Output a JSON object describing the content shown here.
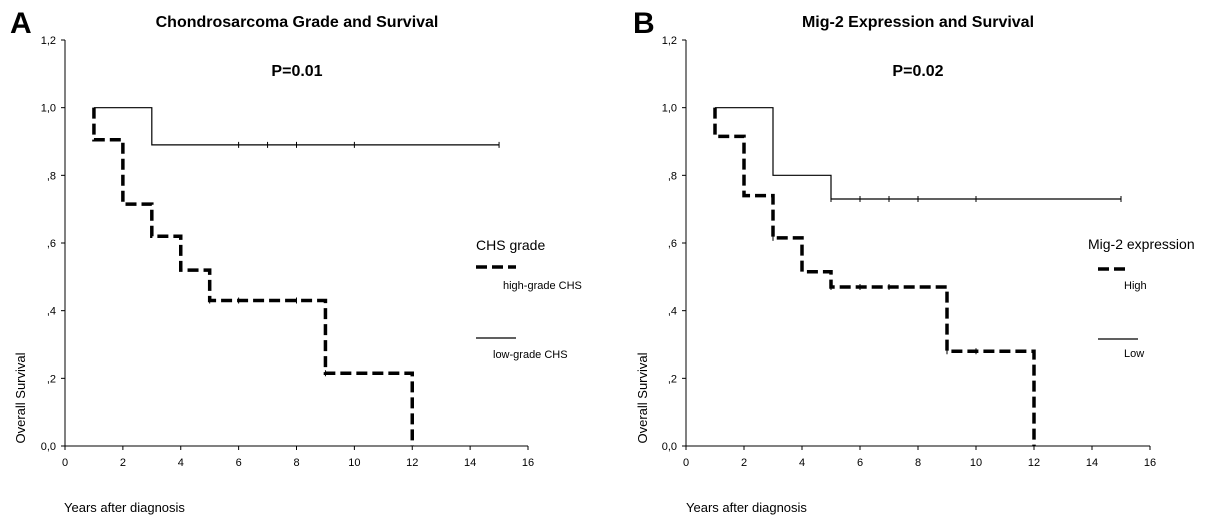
{
  "colors": {
    "ink": "#000000",
    "background": "#ffffff"
  },
  "chart_data": [
    {
      "type": "line",
      "step": true,
      "panel_label": "A",
      "title": "Chondrosarcoma Grade and Survival",
      "annotation": "P=0.01",
      "xlabel": "Years after diagnosis",
      "ylabel": "Overall Survival",
      "xlim": [
        0,
        16
      ],
      "ylim": [
        0,
        1.2
      ],
      "x_ticks": [
        0,
        2,
        4,
        6,
        8,
        10,
        12,
        14,
        16
      ],
      "x_tick_labels": [
        "0",
        "2",
        "4",
        "6",
        "8",
        "10",
        "12",
        "14",
        "16"
      ],
      "y_ticks": [
        0,
        0.2,
        0.4,
        0.6,
        0.8,
        1.0,
        1.2
      ],
      "y_tick_labels": [
        "0,0",
        ",2",
        ",4",
        ",6",
        ",8",
        "1,0",
        "1,2"
      ],
      "legend_title": "CHS grade",
      "legend_position": "right",
      "series": [
        {
          "name": "high-grade CHS",
          "style": "dashed",
          "steps": [
            [
              1,
              0.905
            ],
            [
              2,
              0.715
            ],
            [
              3,
              0.62
            ],
            [
              4,
              0.52
            ],
            [
              5,
              0.43
            ],
            [
              9,
              0.215
            ],
            [
              12,
              0.0
            ]
          ],
          "censored": [
            [
              5,
              0.43
            ],
            [
              6,
              0.43
            ],
            [
              8,
              0.43
            ],
            [
              9,
              0.215
            ]
          ]
        },
        {
          "name": "low-grade CHS",
          "style": "solid",
          "steps": [
            [
              1,
              1.0
            ],
            [
              3,
              0.89
            ],
            [
              15,
              0.89
            ]
          ],
          "censored": [
            [
              6,
              0.89
            ],
            [
              7,
              0.89
            ],
            [
              8,
              0.89
            ],
            [
              10,
              0.89
            ],
            [
              15,
              0.89
            ]
          ]
        }
      ]
    },
    {
      "type": "line",
      "step": true,
      "panel_label": "B",
      "title": "Mig-2 Expression and Survival",
      "annotation": "P=0.02",
      "xlabel": "Years after diagnosis",
      "ylabel": "Overall Survival",
      "xlim": [
        0,
        16
      ],
      "ylim": [
        0,
        1.2
      ],
      "x_ticks": [
        0,
        2,
        4,
        6,
        8,
        10,
        12,
        14,
        16
      ],
      "x_tick_labels": [
        "0",
        "2",
        "4",
        "6",
        "8",
        "10",
        "12",
        "14",
        "16"
      ],
      "y_ticks": [
        0,
        0.2,
        0.4,
        0.6,
        0.8,
        1.0,
        1.2
      ],
      "y_tick_labels": [
        "0,0",
        ",2",
        ",4",
        ",6",
        ",8",
        "1,0",
        "1,2"
      ],
      "legend_title": "Mig-2 expression",
      "legend_position": "right",
      "series": [
        {
          "name": "High",
          "style": "dashed",
          "steps": [
            [
              1,
              0.915
            ],
            [
              2,
              0.74
            ],
            [
              3,
              0.615
            ],
            [
              4,
              0.515
            ],
            [
              5,
              0.47
            ],
            [
              9,
              0.28
            ],
            [
              12,
              0.0
            ]
          ],
          "censored": [
            [
              3,
              0.615
            ],
            [
              5,
              0.47
            ],
            [
              6,
              0.47
            ],
            [
              7,
              0.47
            ],
            [
              9,
              0.28
            ],
            [
              10,
              0.28
            ]
          ]
        },
        {
          "name": "Low",
          "style": "solid",
          "steps": [
            [
              1,
              1.0
            ],
            [
              3,
              0.8
            ],
            [
              5,
              0.73
            ],
            [
              15,
              0.73
            ]
          ],
          "censored": [
            [
              5,
              0.73
            ],
            [
              6,
              0.73
            ],
            [
              7,
              0.73
            ],
            [
              8,
              0.73
            ],
            [
              10,
              0.73
            ],
            [
              15,
              0.73
            ]
          ]
        }
      ]
    }
  ]
}
